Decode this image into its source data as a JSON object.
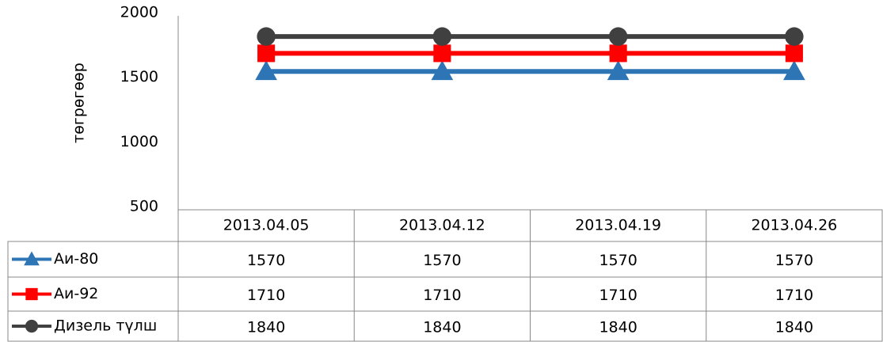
{
  "chart_data": {
    "type": "line",
    "y_label": "төгрөгөөр",
    "categories": [
      "2013.04.05",
      "2013.04.12",
      "2013.04.19",
      "2013.04.26"
    ],
    "series": [
      {
        "name": "Аи-80",
        "color": "#2e75b6",
        "marker": "triangle",
        "values": [
          1570,
          1570,
          1570,
          1570
        ]
      },
      {
        "name": "Аи-92",
        "color": "#ff0000",
        "marker": "square",
        "values": [
          1710,
          1710,
          1710,
          1710
        ]
      },
      {
        "name": "Дизель түлш",
        "color": "#404040",
        "marker": "circle",
        "values": [
          1840,
          1840,
          1840,
          1840
        ]
      }
    ],
    "ylim": [
      500,
      2000
    ],
    "yticks": [
      500,
      1000,
      1500,
      2000
    ],
    "grid": false,
    "data_table": true
  }
}
